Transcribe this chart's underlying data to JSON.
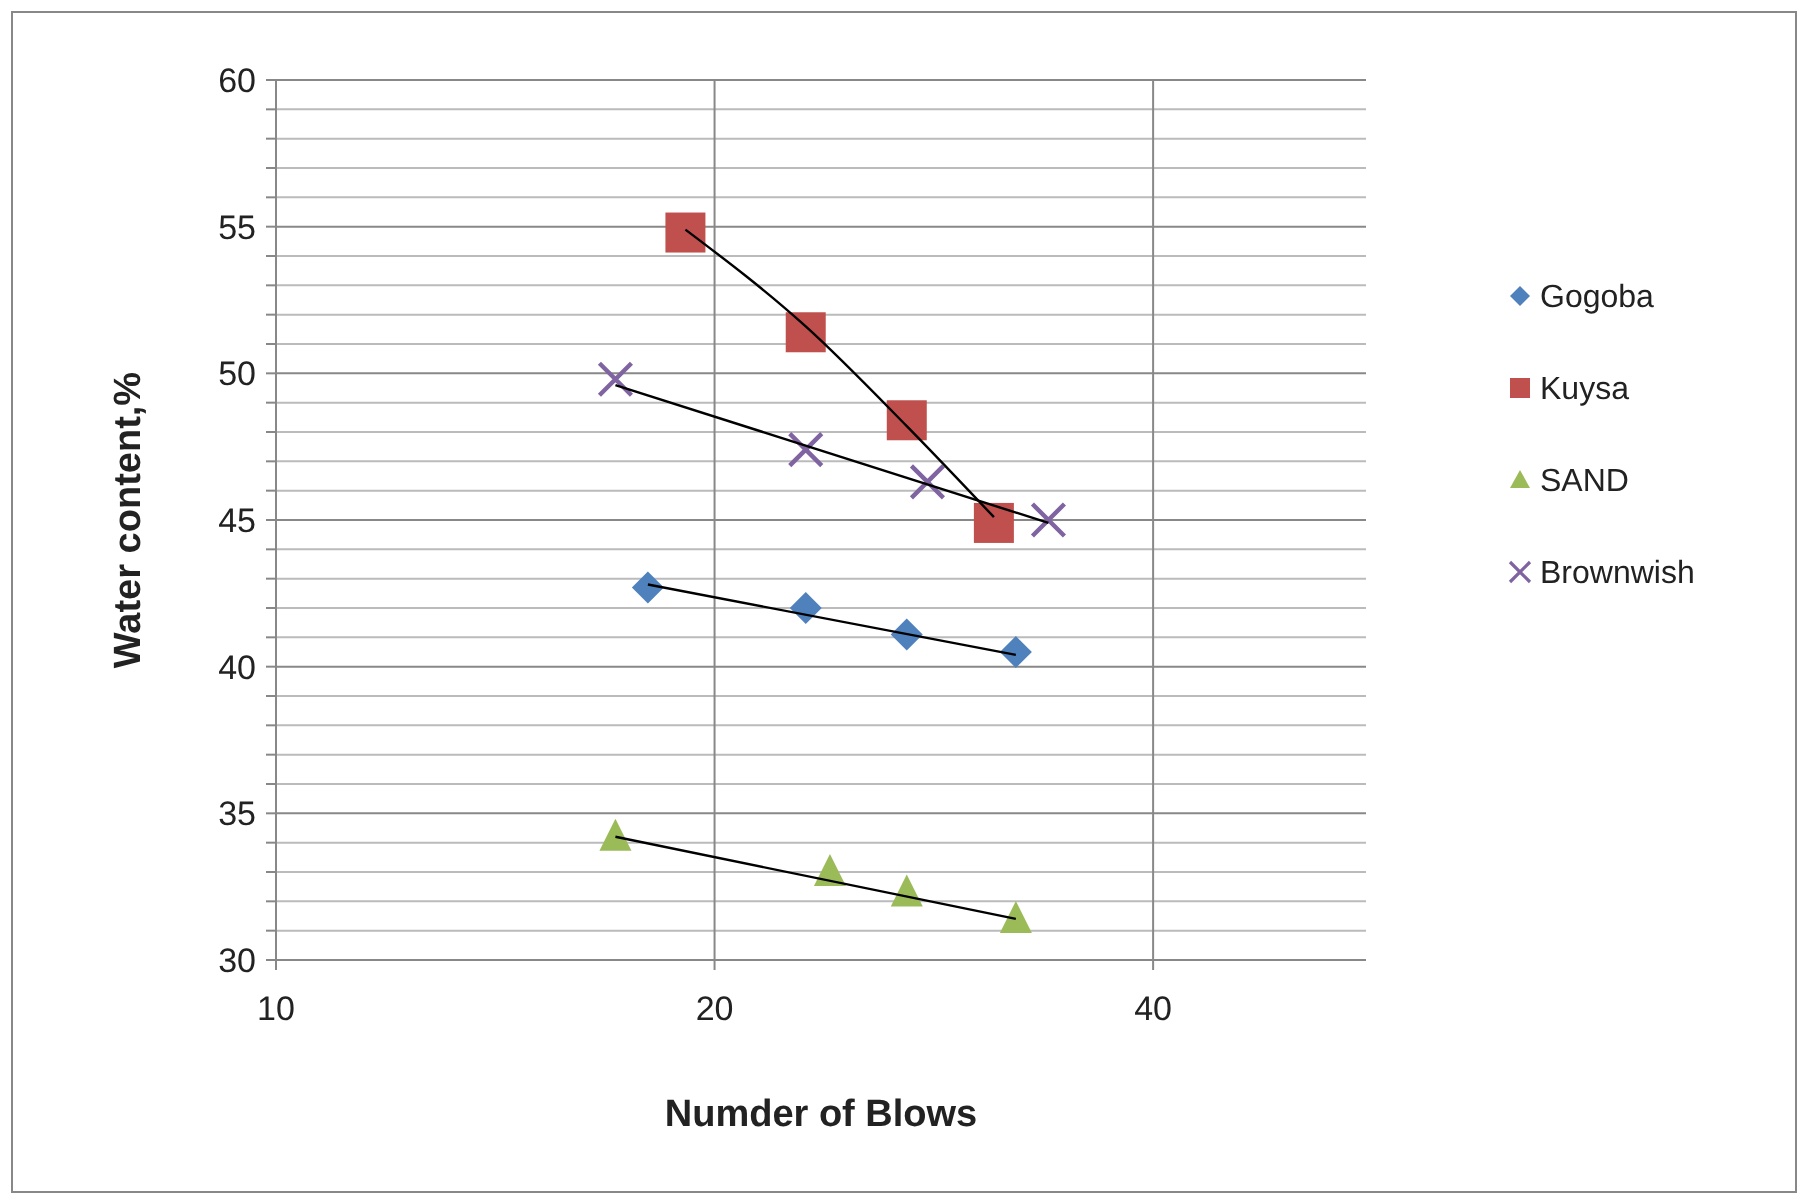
{
  "chart_data": {
    "type": "scatter",
    "xlabel": "Numder of Blows",
    "ylabel": "Water content,%",
    "log": "x",
    "xlim": [
      10,
      56
    ],
    "xticks": [
      10,
      20,
      40
    ],
    "ylim": [
      30,
      60
    ],
    "yticks": [
      30,
      {
        "value": 31,
        "label": null
      },
      {
        "value": 32,
        "label": null
      },
      {
        "value": 33,
        "label": null
      },
      {
        "value": 34,
        "label": null
      },
      35,
      {
        "value": 36,
        "label": null
      },
      {
        "value": 37,
        "label": null
      },
      {
        "value": 38,
        "label": null
      },
      {
        "value": 39,
        "label": null
      },
      40,
      {
        "value": 41,
        "label": null
      },
      {
        "value": 42,
        "label": null
      },
      {
        "value": 43,
        "label": null
      },
      {
        "value": 44,
        "label": null
      },
      45,
      {
        "value": 46,
        "label": null
      },
      {
        "value": 47,
        "label": null
      },
      {
        "value": 48,
        "label": null
      },
      {
        "value": 49,
        "label": null
      },
      50,
      {
        "value": 51,
        "label": null
      },
      {
        "value": 52,
        "label": null
      },
      {
        "value": 53,
        "label": null
      },
      {
        "value": 54,
        "label": null
      },
      55,
      {
        "value": 56,
        "label": null
      },
      {
        "value": 57,
        "label": null
      },
      {
        "value": 58,
        "label": null
      },
      {
        "value": 59,
        "label": null
      },
      60
    ],
    "grid": true,
    "legend": "right",
    "series": [
      {
        "name": "Gogoba",
        "color": "#4f81bd",
        "marker": "diamond",
        "x": [
          18,
          23.1,
          27.1,
          32.2
        ],
        "values": [
          42.7,
          42.0,
          41.1,
          40.5
        ]
      },
      {
        "name": "Kuysa",
        "color": "#c0504d",
        "marker": "square",
        "x": [
          19.1,
          23.1,
          27.1,
          31.1
        ],
        "values": [
          54.8,
          51.4,
          48.4,
          44.9
        ]
      },
      {
        "name": "SAND",
        "color": "#9bbb59",
        "marker": "triangle",
        "x": [
          17.1,
          24,
          27.1,
          32.2
        ],
        "values": [
          34.2,
          33.0,
          32.3,
          31.4
        ]
      },
      {
        "name": "Brownwish",
        "color": "#8064a2",
        "marker": "cross",
        "x": [
          17.1,
          23.1,
          28,
          33.9
        ],
        "values": [
          49.8,
          47.4,
          46.3,
          45.0
        ]
      },
      {
        "type": "line",
        "color": "#000000",
        "marker": "none",
        "x": [
          18,
          32.2
        ],
        "values": [
          42.8,
          40.4
        ]
      },
      {
        "type": "line",
        "color": "#000000",
        "marker": "none",
        "x": [
          19.1,
          23.1,
          27.1,
          31.1
        ],
        "values": [
          54.9,
          51.6,
          48.2,
          45.1
        ]
      },
      {
        "type": "line",
        "color": "#000000",
        "marker": "none",
        "x": [
          17.1,
          32.2
        ],
        "values": [
          34.2,
          31.4
        ]
      },
      {
        "type": "line",
        "color": "#000000",
        "marker": "none",
        "x": [
          17.1,
          33.9
        ],
        "values": [
          49.6,
          44.9
        ]
      }
    ]
  }
}
